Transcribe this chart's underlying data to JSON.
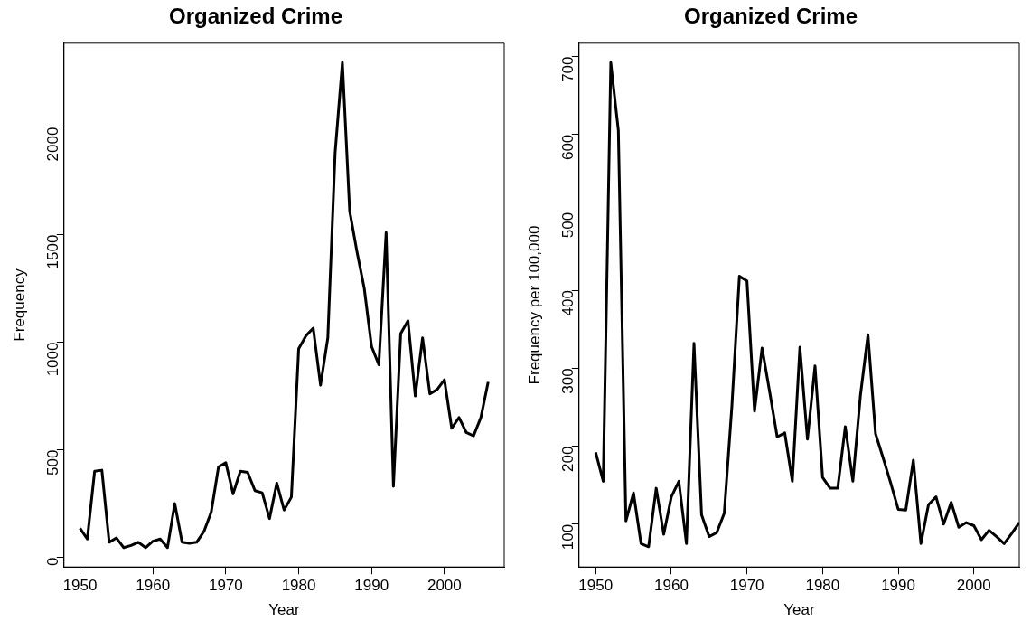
{
  "chart_data": [
    {
      "type": "line",
      "title": "Organized Crime",
      "xlabel": "Year",
      "ylabel": "Frequency",
      "x": [
        1950,
        1951,
        1952,
        1953,
        1954,
        1955,
        1956,
        1957,
        1958,
        1959,
        1960,
        1961,
        1962,
        1963,
        1964,
        1965,
        1966,
        1967,
        1968,
        1969,
        1970,
        1971,
        1972,
        1973,
        1974,
        1975,
        1976,
        1977,
        1978,
        1979,
        1980,
        1981,
        1982,
        1983,
        1984,
        1985,
        1986,
        1987,
        1988,
        1989,
        1990,
        1991,
        1992,
        1993,
        1994,
        1995,
        1996,
        1997,
        1998,
        1999,
        2000,
        2001,
        2002,
        2003,
        2004,
        2005,
        2006
      ],
      "series": [
        {
          "color": "#000000",
          "values": [
            135,
            85,
            400,
            405,
            70,
            90,
            45,
            55,
            70,
            45,
            75,
            85,
            45,
            250,
            70,
            65,
            70,
            120,
            210,
            420,
            440,
            295,
            400,
            395,
            310,
            300,
            180,
            345,
            220,
            280,
            970,
            1030,
            1065,
            800,
            1020,
            1880,
            2300,
            1610,
            1420,
            1250,
            980,
            895,
            1510,
            330,
            1040,
            1100,
            750,
            1020,
            760,
            780,
            825,
            600,
            650,
            580,
            565,
            650,
            815
          ]
        }
      ],
      "xlim": [
        1947.8,
        2008.2
      ],
      "ylim": [
        -45,
        2390
      ],
      "xticks": [
        1950,
        1960,
        1970,
        1980,
        1990,
        2000
      ],
      "yticks": [
        0,
        500,
        1000,
        1500,
        2000
      ],
      "line_style": "solid"
    },
    {
      "type": "line",
      "title": "Organized Crime",
      "xlabel": "Year",
      "ylabel": "Frequency per 100,000",
      "x": [
        1950,
        1951,
        1952,
        1953,
        1954,
        1955,
        1956,
        1957,
        1958,
        1959,
        1960,
        1961,
        1962,
        1963,
        1964,
        1965,
        1966,
        1967,
        1968,
        1969,
        1970,
        1971,
        1972,
        1973,
        1974,
        1975,
        1976,
        1977,
        1978,
        1979,
        1980,
        1981,
        1982,
        1983,
        1984,
        1985,
        1986,
        1987,
        1988,
        1989,
        1990,
        1991,
        1992,
        1993,
        1994,
        1995,
        1996,
        1997,
        1998,
        1999,
        2000,
        2001,
        2002,
        2003,
        2004,
        2005,
        2006
      ],
      "series": [
        {
          "color": "#000000",
          "values": [
            192,
            155,
            692,
            605,
            104,
            140,
            75,
            71,
            146,
            87,
            135,
            155,
            75,
            332,
            112,
            84,
            89,
            114,
            250,
            418,
            412,
            245,
            326,
            270,
            212,
            217,
            155,
            327,
            209,
            303,
            160,
            146,
            146,
            225,
            155,
            265,
            343,
            216,
            185,
            153,
            119,
            118,
            182,
            75,
            125,
            135,
            100,
            128,
            96,
            102,
            98,
            80,
            92,
            84,
            75,
            88,
            102
          ]
        }
      ],
      "xlim": [
        1947.8,
        2006
      ],
      "ylim": [
        45,
        717
      ],
      "xticks": [
        1950,
        1960,
        1970,
        1980,
        1990,
        2000
      ],
      "yticks": [
        100,
        200,
        300,
        400,
        500,
        600,
        700
      ],
      "line_style": "solid"
    }
  ]
}
